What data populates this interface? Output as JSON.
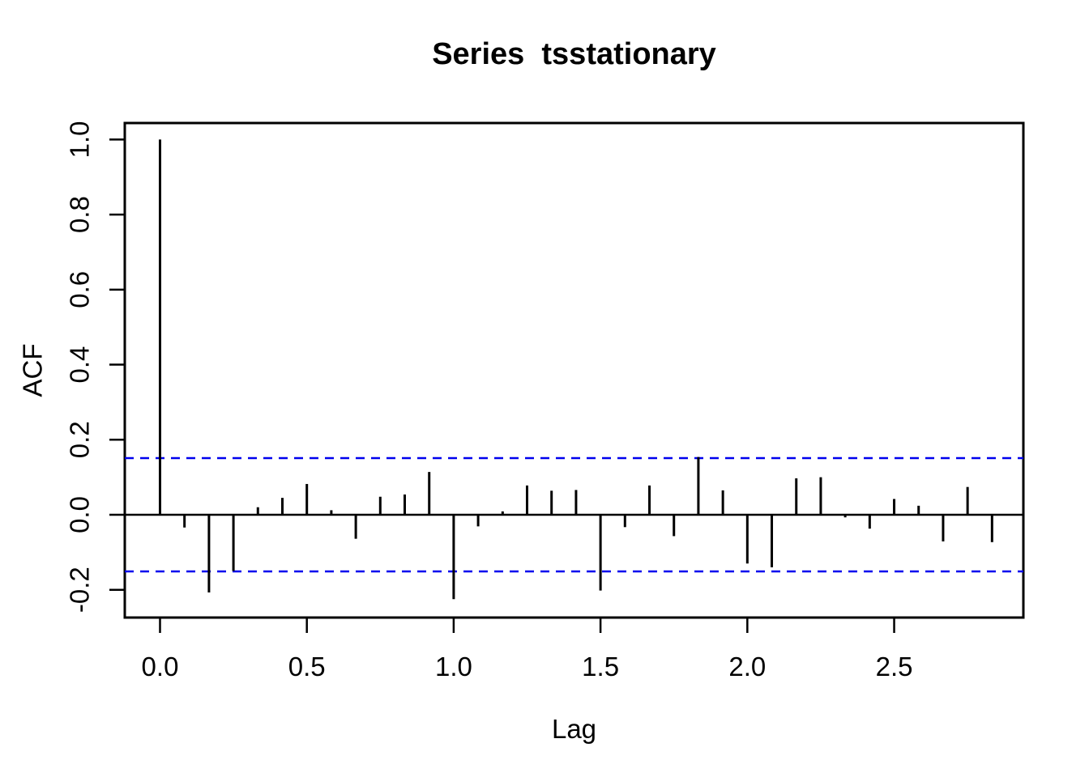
{
  "title": "Series  tsstationary",
  "chart_data": {
    "type": "bar",
    "variant": "acf-stem-plot",
    "title": "Series  tsstationary",
    "xlabel": "Lag",
    "ylabel": "ACF",
    "x": [
      0,
      0.0833,
      0.1667,
      0.25,
      0.3333,
      0.4167,
      0.5,
      0.5833,
      0.6667,
      0.75,
      0.8333,
      0.9167,
      1.0,
      1.0833,
      1.1667,
      1.25,
      1.3333,
      1.4167,
      1.5,
      1.5833,
      1.6667,
      1.75,
      1.8333,
      1.9167,
      2.0,
      2.0833,
      2.1667,
      2.25,
      2.3333,
      2.4167,
      2.5,
      2.5833,
      2.6667,
      2.75,
      2.8333
    ],
    "values": [
      1.0,
      -0.034,
      -0.207,
      -0.15,
      0.02,
      0.045,
      0.082,
      0.012,
      -0.064,
      0.048,
      0.054,
      0.114,
      -0.225,
      -0.031,
      0.009,
      0.078,
      0.064,
      0.066,
      -0.202,
      -0.033,
      0.078,
      -0.057,
      0.154,
      0.065,
      -0.13,
      -0.14,
      0.097,
      0.1,
      -0.007,
      -0.037,
      0.042,
      0.024,
      -0.071,
      0.074,
      -0.073
    ],
    "lag_step": 0.0833,
    "x_ticks": [
      0.0,
      0.5,
      1.0,
      1.5,
      2.0,
      2.5
    ],
    "x_tick_labels": [
      "0.0",
      "0.5",
      "1.0",
      "1.5",
      "2.0",
      "2.5"
    ],
    "y_ticks": [
      1.0,
      0.8,
      0.6,
      0.4,
      0.2,
      0.0,
      -0.2
    ],
    "y_tick_labels": [
      "1.0",
      "0.8",
      "0.6",
      "0.4",
      "0.2",
      "0.0",
      "-0.2"
    ],
    "xlim": [
      -0.12,
      2.94
    ],
    "ylim": [
      -0.274,
      1.044
    ],
    "confidence_level": 0.151,
    "grid": false,
    "legend_position": "none",
    "colors": {
      "bars": "#000000",
      "axis": "#000000",
      "confidence": "#0000ee",
      "background": "#ffffff"
    }
  }
}
